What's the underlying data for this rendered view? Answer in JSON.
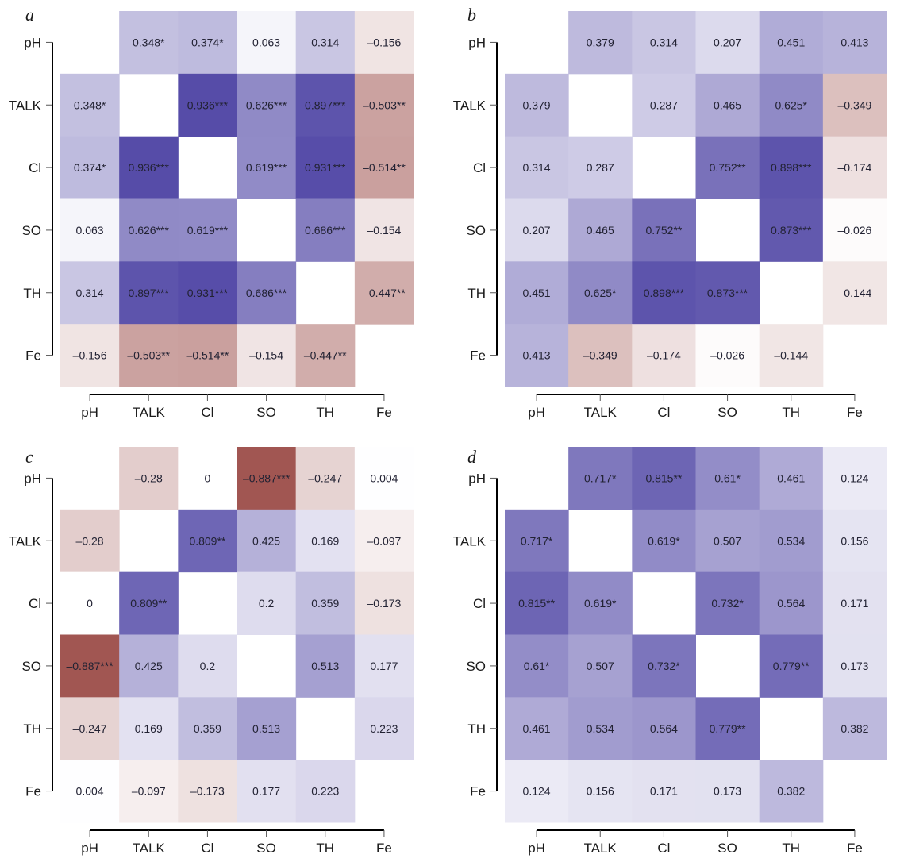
{
  "chart_data": [
    {
      "type": "heatmap",
      "panel_label": "a",
      "variables": [
        "pH",
        "TALK",
        "Cl",
        "SO",
        "TH",
        "Fe"
      ],
      "xlabel": "",
      "ylabel": "",
      "color_scale": {
        "negative": "#8b2f2a",
        "zero": "#ffffff",
        "positive": "#3a2f9a",
        "range": [
          -1,
          1
        ]
      },
      "matrix": [
        [
          null,
          0.348,
          0.374,
          0.063,
          0.314,
          -0.156
        ],
        [
          0.348,
          null,
          0.936,
          0.626,
          0.897,
          -0.503
        ],
        [
          0.374,
          0.936,
          null,
          0.619,
          0.931,
          -0.514
        ],
        [
          0.063,
          0.626,
          0.619,
          null,
          0.686,
          -0.154
        ],
        [
          0.314,
          0.897,
          0.931,
          0.686,
          null,
          -0.447
        ],
        [
          -0.156,
          -0.503,
          -0.514,
          -0.154,
          -0.447,
          null
        ]
      ],
      "labels": [
        [
          "",
          "0.348*",
          "0.374*",
          "0.063",
          "0.314",
          "–0.156"
        ],
        [
          "0.348*",
          "",
          "0.936***",
          "0.626***",
          "0.897***",
          "–0.503**"
        ],
        [
          "0.374*",
          "0.936***",
          "",
          "0.619***",
          "0.931***",
          "–0.514**"
        ],
        [
          "0.063",
          "0.626***",
          "0.619***",
          "",
          "0.686***",
          "–0.154"
        ],
        [
          "0.314",
          "0.897***",
          "0.931***",
          "0.686***",
          "",
          "–0.447**"
        ],
        [
          "–0.156",
          "–0.503**",
          "–0.514**",
          "–0.154",
          "–0.447**",
          ""
        ]
      ]
    },
    {
      "type": "heatmap",
      "panel_label": "b",
      "variables": [
        "pH",
        "TALK",
        "Cl",
        "SO",
        "TH",
        "Fe"
      ],
      "xlabel": "",
      "ylabel": "",
      "color_scale": {
        "negative": "#8b2f2a",
        "zero": "#ffffff",
        "positive": "#3a2f9a",
        "range": [
          -1,
          1
        ]
      },
      "matrix": [
        [
          null,
          0.379,
          0.314,
          0.207,
          0.451,
          0.413
        ],
        [
          0.379,
          null,
          0.287,
          0.465,
          0.625,
          -0.349
        ],
        [
          0.314,
          0.287,
          null,
          0.752,
          0.898,
          -0.174
        ],
        [
          0.207,
          0.465,
          0.752,
          null,
          0.873,
          -0.026
        ],
        [
          0.451,
          0.625,
          0.898,
          0.873,
          null,
          -0.144
        ],
        [
          0.413,
          -0.349,
          -0.174,
          -0.026,
          -0.144,
          null
        ]
      ],
      "labels": [
        [
          "",
          "0.379",
          "0.314",
          "0.207",
          "0.451",
          "0.413"
        ],
        [
          "0.379",
          "",
          "0.287",
          "0.465",
          "0.625*",
          "–0.349"
        ],
        [
          "0.314",
          "0.287",
          "",
          "0.752**",
          "0.898***",
          "–0.174"
        ],
        [
          "0.207",
          "0.465",
          "0.752**",
          "",
          "0.873***",
          "–0.026"
        ],
        [
          "0.451",
          "0.625*",
          "0.898***",
          "0.873***",
          "",
          "–0.144"
        ],
        [
          "0.413",
          "–0.349",
          "–0.174",
          "–0.026",
          "–0.144",
          ""
        ]
      ]
    },
    {
      "type": "heatmap",
      "panel_label": "c",
      "variables": [
        "pH",
        "TALK",
        "Cl",
        "SO",
        "TH",
        "Fe"
      ],
      "xlabel": "",
      "ylabel": "",
      "color_scale": {
        "negative": "#8b2f2a",
        "zero": "#ffffff",
        "positive": "#3a2f9a",
        "range": [
          -1,
          1
        ]
      },
      "matrix": [
        [
          null,
          -0.28,
          0,
          -0.887,
          -0.247,
          0.004
        ],
        [
          -0.28,
          null,
          0.809,
          0.425,
          0.169,
          -0.097
        ],
        [
          0,
          0.809,
          null,
          0.2,
          0.359,
          -0.173
        ],
        [
          -0.887,
          0.425,
          0.2,
          null,
          0.513,
          0.177
        ],
        [
          -0.247,
          0.169,
          0.359,
          0.513,
          null,
          0.223
        ],
        [
          0.004,
          -0.097,
          -0.173,
          0.177,
          0.223,
          null
        ]
      ],
      "labels": [
        [
          "",
          "–0.28",
          "0",
          "–0.887***",
          "–0.247",
          "0.004"
        ],
        [
          "–0.28",
          "",
          "0.809**",
          "0.425",
          "0.169",
          "–0.097"
        ],
        [
          "0",
          "0.809**",
          "",
          "0.2",
          "0.359",
          "–0.173"
        ],
        [
          "–0.887***",
          "0.425",
          "0.2",
          "",
          "0.513",
          "0.177"
        ],
        [
          "–0.247",
          "0.169",
          "0.359",
          "0.513",
          "",
          "0.223"
        ],
        [
          "0.004",
          "–0.097",
          "–0.173",
          "0.177",
          "0.223",
          ""
        ]
      ]
    },
    {
      "type": "heatmap",
      "panel_label": "d",
      "variables": [
        "pH",
        "TALK",
        "Cl",
        "SO",
        "TH",
        "Fe"
      ],
      "xlabel": "",
      "ylabel": "",
      "color_scale": {
        "negative": "#8b2f2a",
        "zero": "#ffffff",
        "positive": "#3a2f9a",
        "range": [
          -1,
          1
        ]
      },
      "matrix": [
        [
          null,
          0.717,
          0.815,
          0.61,
          0.461,
          0.124
        ],
        [
          0.717,
          null,
          0.619,
          0.507,
          0.534,
          0.156
        ],
        [
          0.815,
          0.619,
          null,
          0.732,
          0.564,
          0.171
        ],
        [
          0.61,
          0.507,
          0.732,
          null,
          0.779,
          0.173
        ],
        [
          0.461,
          0.534,
          0.564,
          0.779,
          null,
          0.382
        ],
        [
          0.124,
          0.156,
          0.171,
          0.173,
          0.382,
          null
        ]
      ],
      "labels": [
        [
          "",
          "0.717*",
          "0.815**",
          "0.61*",
          "0.461",
          "0.124"
        ],
        [
          "0.717*",
          "",
          "0.619*",
          "0.507",
          "0.534",
          "0.156"
        ],
        [
          "0.815**",
          "0.619*",
          "",
          "0.732*",
          "0.564",
          "0.171"
        ],
        [
          "0.61*",
          "0.507",
          "0.732*",
          "",
          "0.779**",
          "0.173"
        ],
        [
          "0.461",
          "0.534",
          "0.564",
          "0.779**",
          "",
          "0.382"
        ],
        [
          "0.124",
          "0.156",
          "0.171",
          "0.173",
          "0.382",
          ""
        ]
      ]
    }
  ]
}
